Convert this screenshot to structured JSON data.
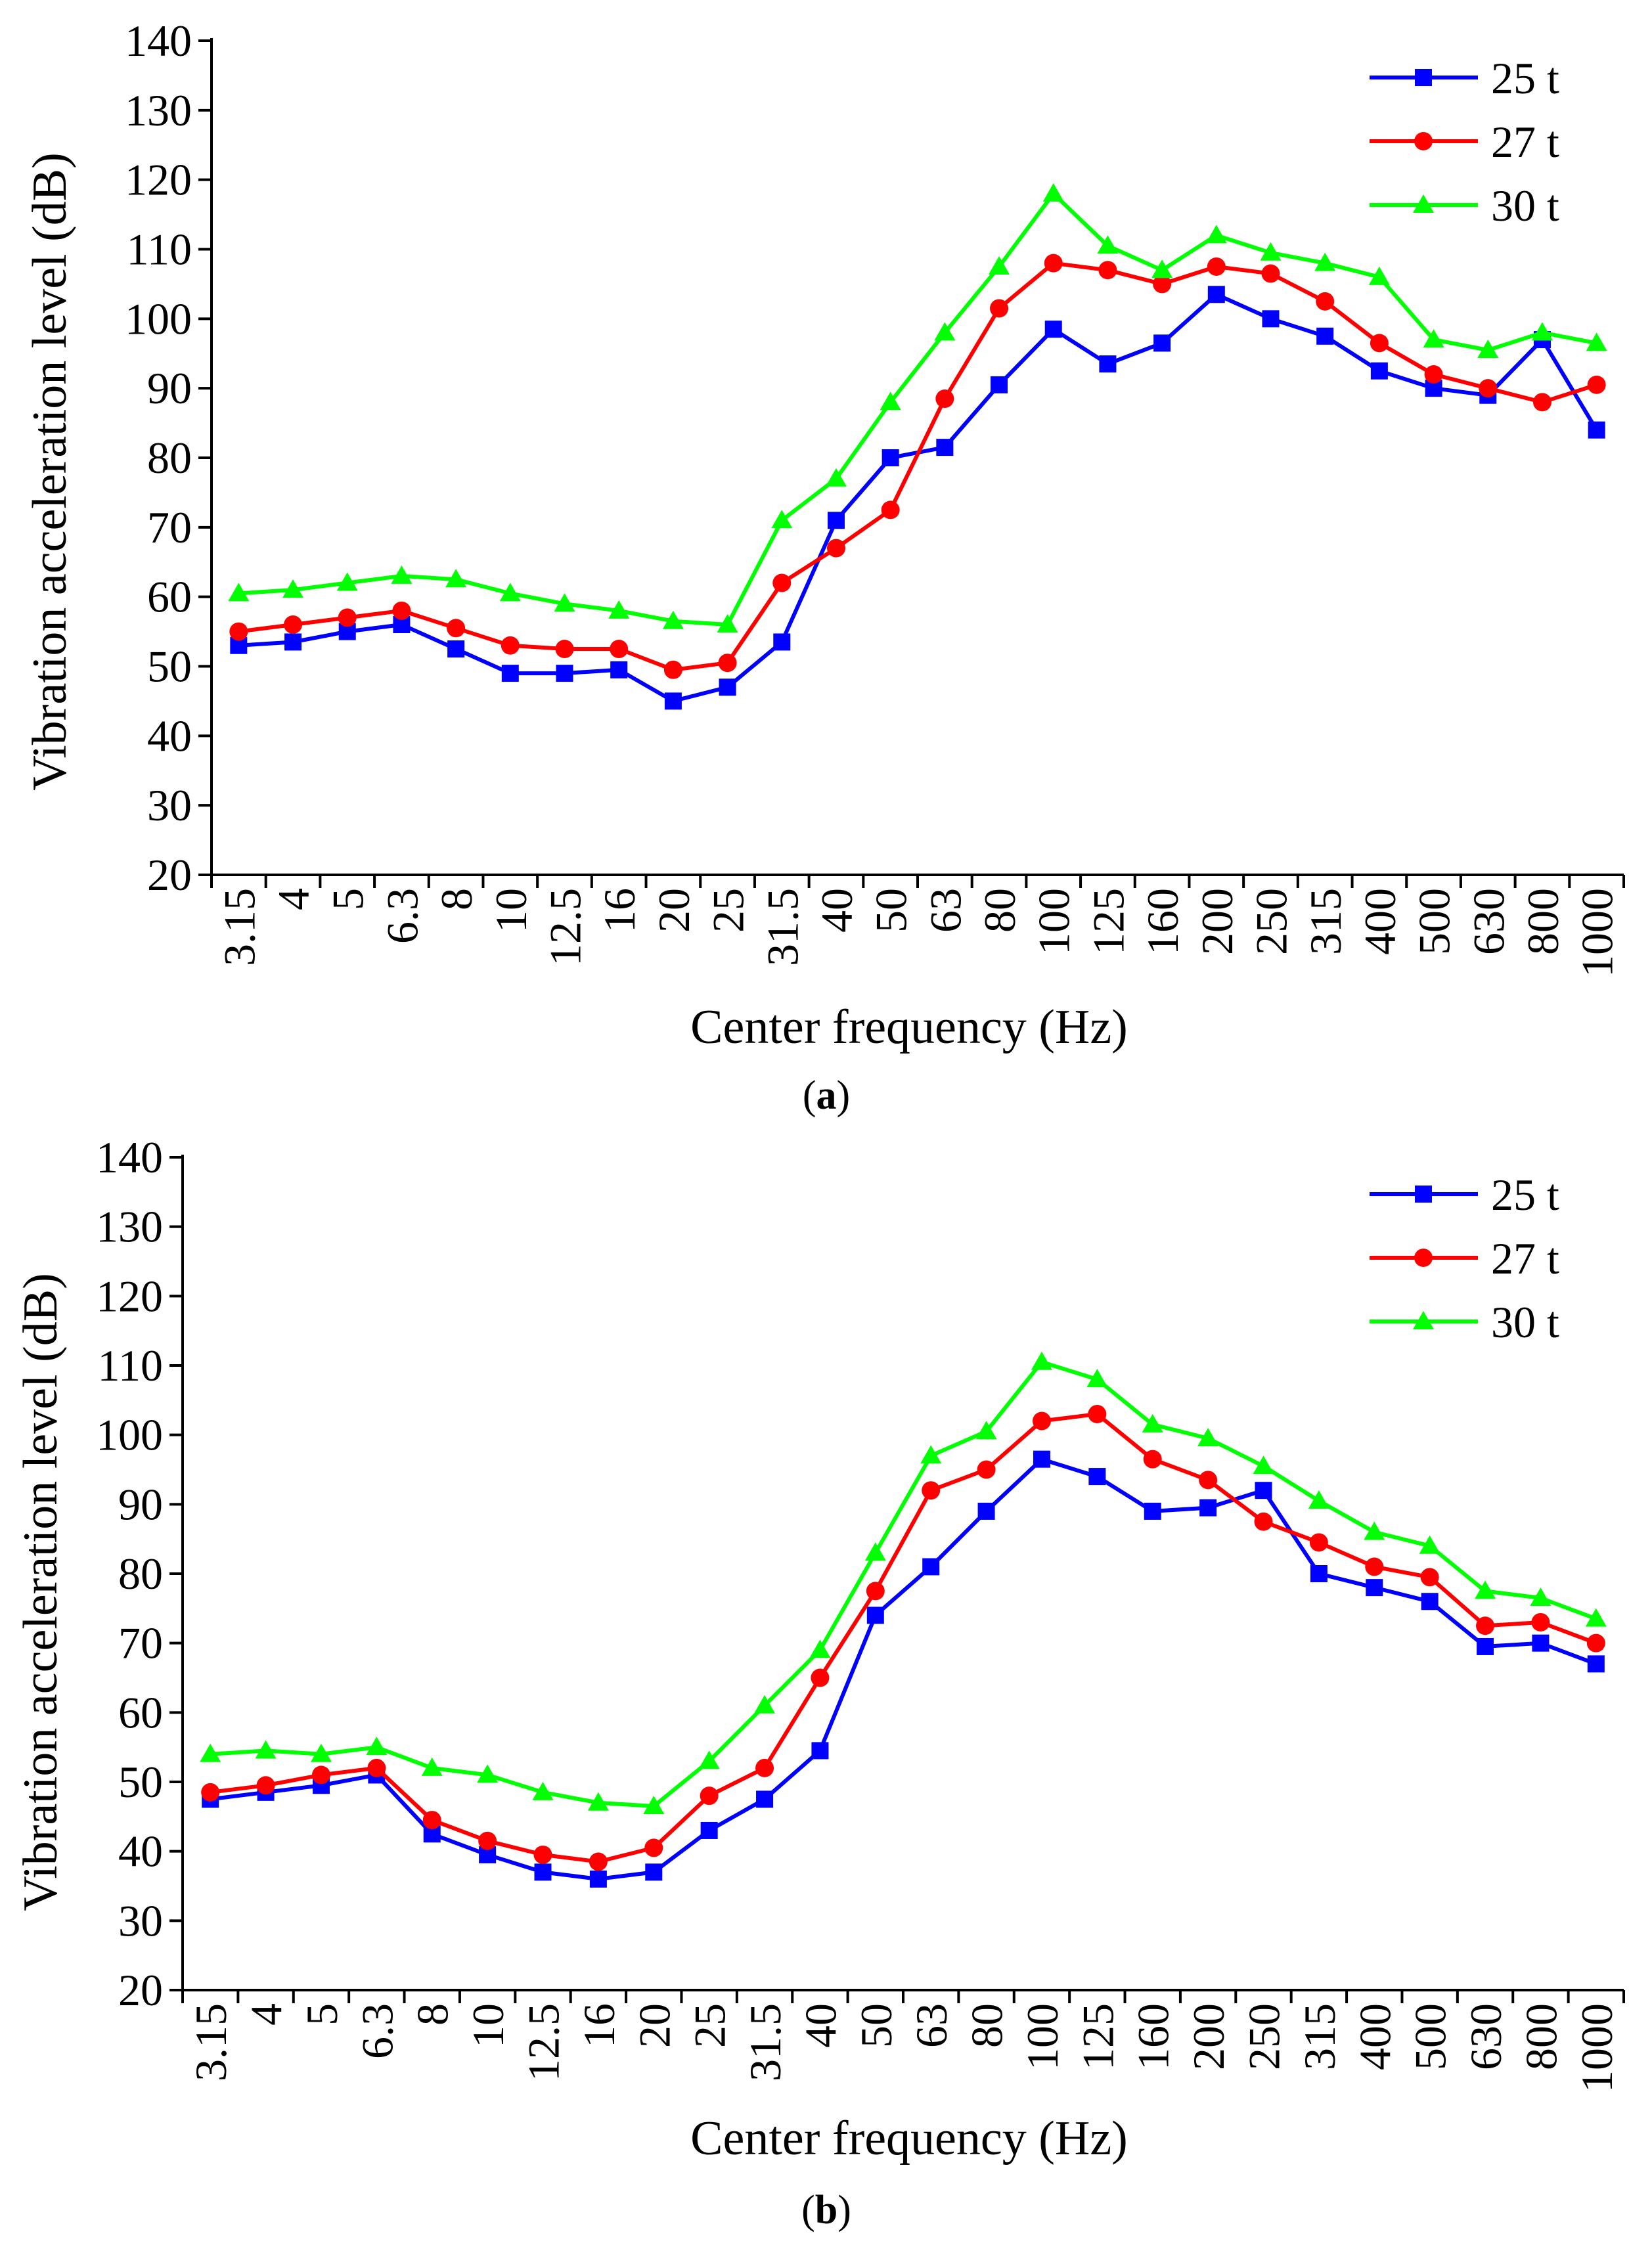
{
  "chart_data": [
    {
      "type": "line",
      "panel_label": "a",
      "title": "",
      "xlabel": "Center frequency (Hz)",
      "ylabel": "Vibration acceleration level (dB)",
      "ylim": [
        20,
        140
      ],
      "yticks": [
        "20",
        "30",
        "40",
        "50",
        "60",
        "70",
        "80",
        "90",
        "100",
        "110",
        "120",
        "130",
        "140"
      ],
      "categories": [
        "3.15",
        "4",
        "5",
        "6.3",
        "8",
        "10",
        "12.5",
        "16",
        "20",
        "25",
        "31.5",
        "40",
        "50",
        "63",
        "80",
        "100",
        "125",
        "160",
        "200",
        "250",
        "315",
        "400",
        "500",
        "630",
        "800",
        "1000"
      ],
      "grid": false,
      "legend_position": "top-right",
      "series": [
        {
          "name": "25 t",
          "color": "#0000ff",
          "marker": "square",
          "values": [
            53.0,
            53.5,
            55.0,
            56.0,
            52.5,
            49.0,
            49.0,
            49.5,
            45.0,
            47.0,
            53.5,
            71.0,
            80.0,
            81.5,
            90.5,
            98.5,
            93.5,
            96.5,
            103.5,
            100.0,
            97.5,
            92.5,
            90.0,
            89.0,
            97.0,
            84.0
          ]
        },
        {
          "name": "27 t",
          "color": "#ff0000",
          "marker": "circle",
          "values": [
            55.0,
            56.0,
            57.0,
            58.0,
            55.5,
            53.0,
            52.5,
            52.5,
            49.5,
            50.5,
            62.0,
            67.0,
            72.5,
            88.5,
            101.5,
            108.0,
            107.0,
            105.0,
            107.5,
            106.5,
            102.5,
            96.5,
            92.0,
            90.0,
            88.0,
            90.5
          ]
        },
        {
          "name": "30 t",
          "color": "#00ff00",
          "marker": "triangle",
          "values": [
            60.5,
            61.0,
            62.0,
            63.0,
            62.5,
            60.5,
            59.0,
            58.0,
            56.5,
            56.0,
            71.0,
            77.0,
            88.0,
            98.0,
            107.5,
            118.0,
            110.5,
            107.0,
            112.0,
            109.5,
            108.0,
            106.0,
            97.0,
            95.5,
            98.0,
            96.5
          ]
        }
      ]
    },
    {
      "type": "line",
      "panel_label": "b",
      "title": "",
      "xlabel": "Center frequency (Hz)",
      "ylabel": "Vibration acceleration level (dB)",
      "ylim": [
        20,
        140
      ],
      "yticks": [
        "20",
        "30",
        "40",
        "50",
        "60",
        "70",
        "80",
        "90",
        "100",
        "110",
        "120",
        "130",
        "140"
      ],
      "categories": [
        "3.15",
        "4",
        "5",
        "6.3",
        "8",
        "10",
        "12.5",
        "16",
        "20",
        "25",
        "31.5",
        "40",
        "50",
        "63",
        "80",
        "100",
        "125",
        "160",
        "200",
        "250",
        "315",
        "400",
        "500",
        "630",
        "800",
        "1000"
      ],
      "grid": false,
      "legend_position": "top-right",
      "series": [
        {
          "name": "25 t",
          "color": "#0000ff",
          "marker": "square",
          "values": [
            47.5,
            48.5,
            49.5,
            51.0,
            42.5,
            39.5,
            37.0,
            36.0,
            37.0,
            43.0,
            47.5,
            54.5,
            74.0,
            81.0,
            89.0,
            96.5,
            94.0,
            89.0,
            89.5,
            92.0,
            80.0,
            78.0,
            76.0,
            69.5,
            70.0,
            67.0
          ]
        },
        {
          "name": "27 t",
          "color": "#ff0000",
          "marker": "circle",
          "values": [
            48.5,
            49.5,
            51.0,
            52.0,
            44.5,
            41.5,
            39.5,
            38.5,
            40.5,
            48.0,
            52.0,
            65.0,
            77.5,
            92.0,
            95.0,
            102.0,
            103.0,
            96.5,
            93.5,
            87.5,
            84.5,
            81.0,
            79.5,
            72.5,
            73.0,
            70.0
          ]
        },
        {
          "name": "30 t",
          "color": "#00ff00",
          "marker": "triangle",
          "values": [
            54.0,
            54.5,
            54.0,
            55.0,
            52.0,
            51.0,
            48.5,
            47.0,
            46.5,
            53.0,
            61.0,
            69.0,
            83.0,
            97.0,
            100.5,
            110.5,
            108.0,
            101.5,
            99.5,
            95.5,
            90.5,
            86.0,
            84.0,
            77.5,
            76.5,
            73.5
          ]
        }
      ]
    }
  ]
}
